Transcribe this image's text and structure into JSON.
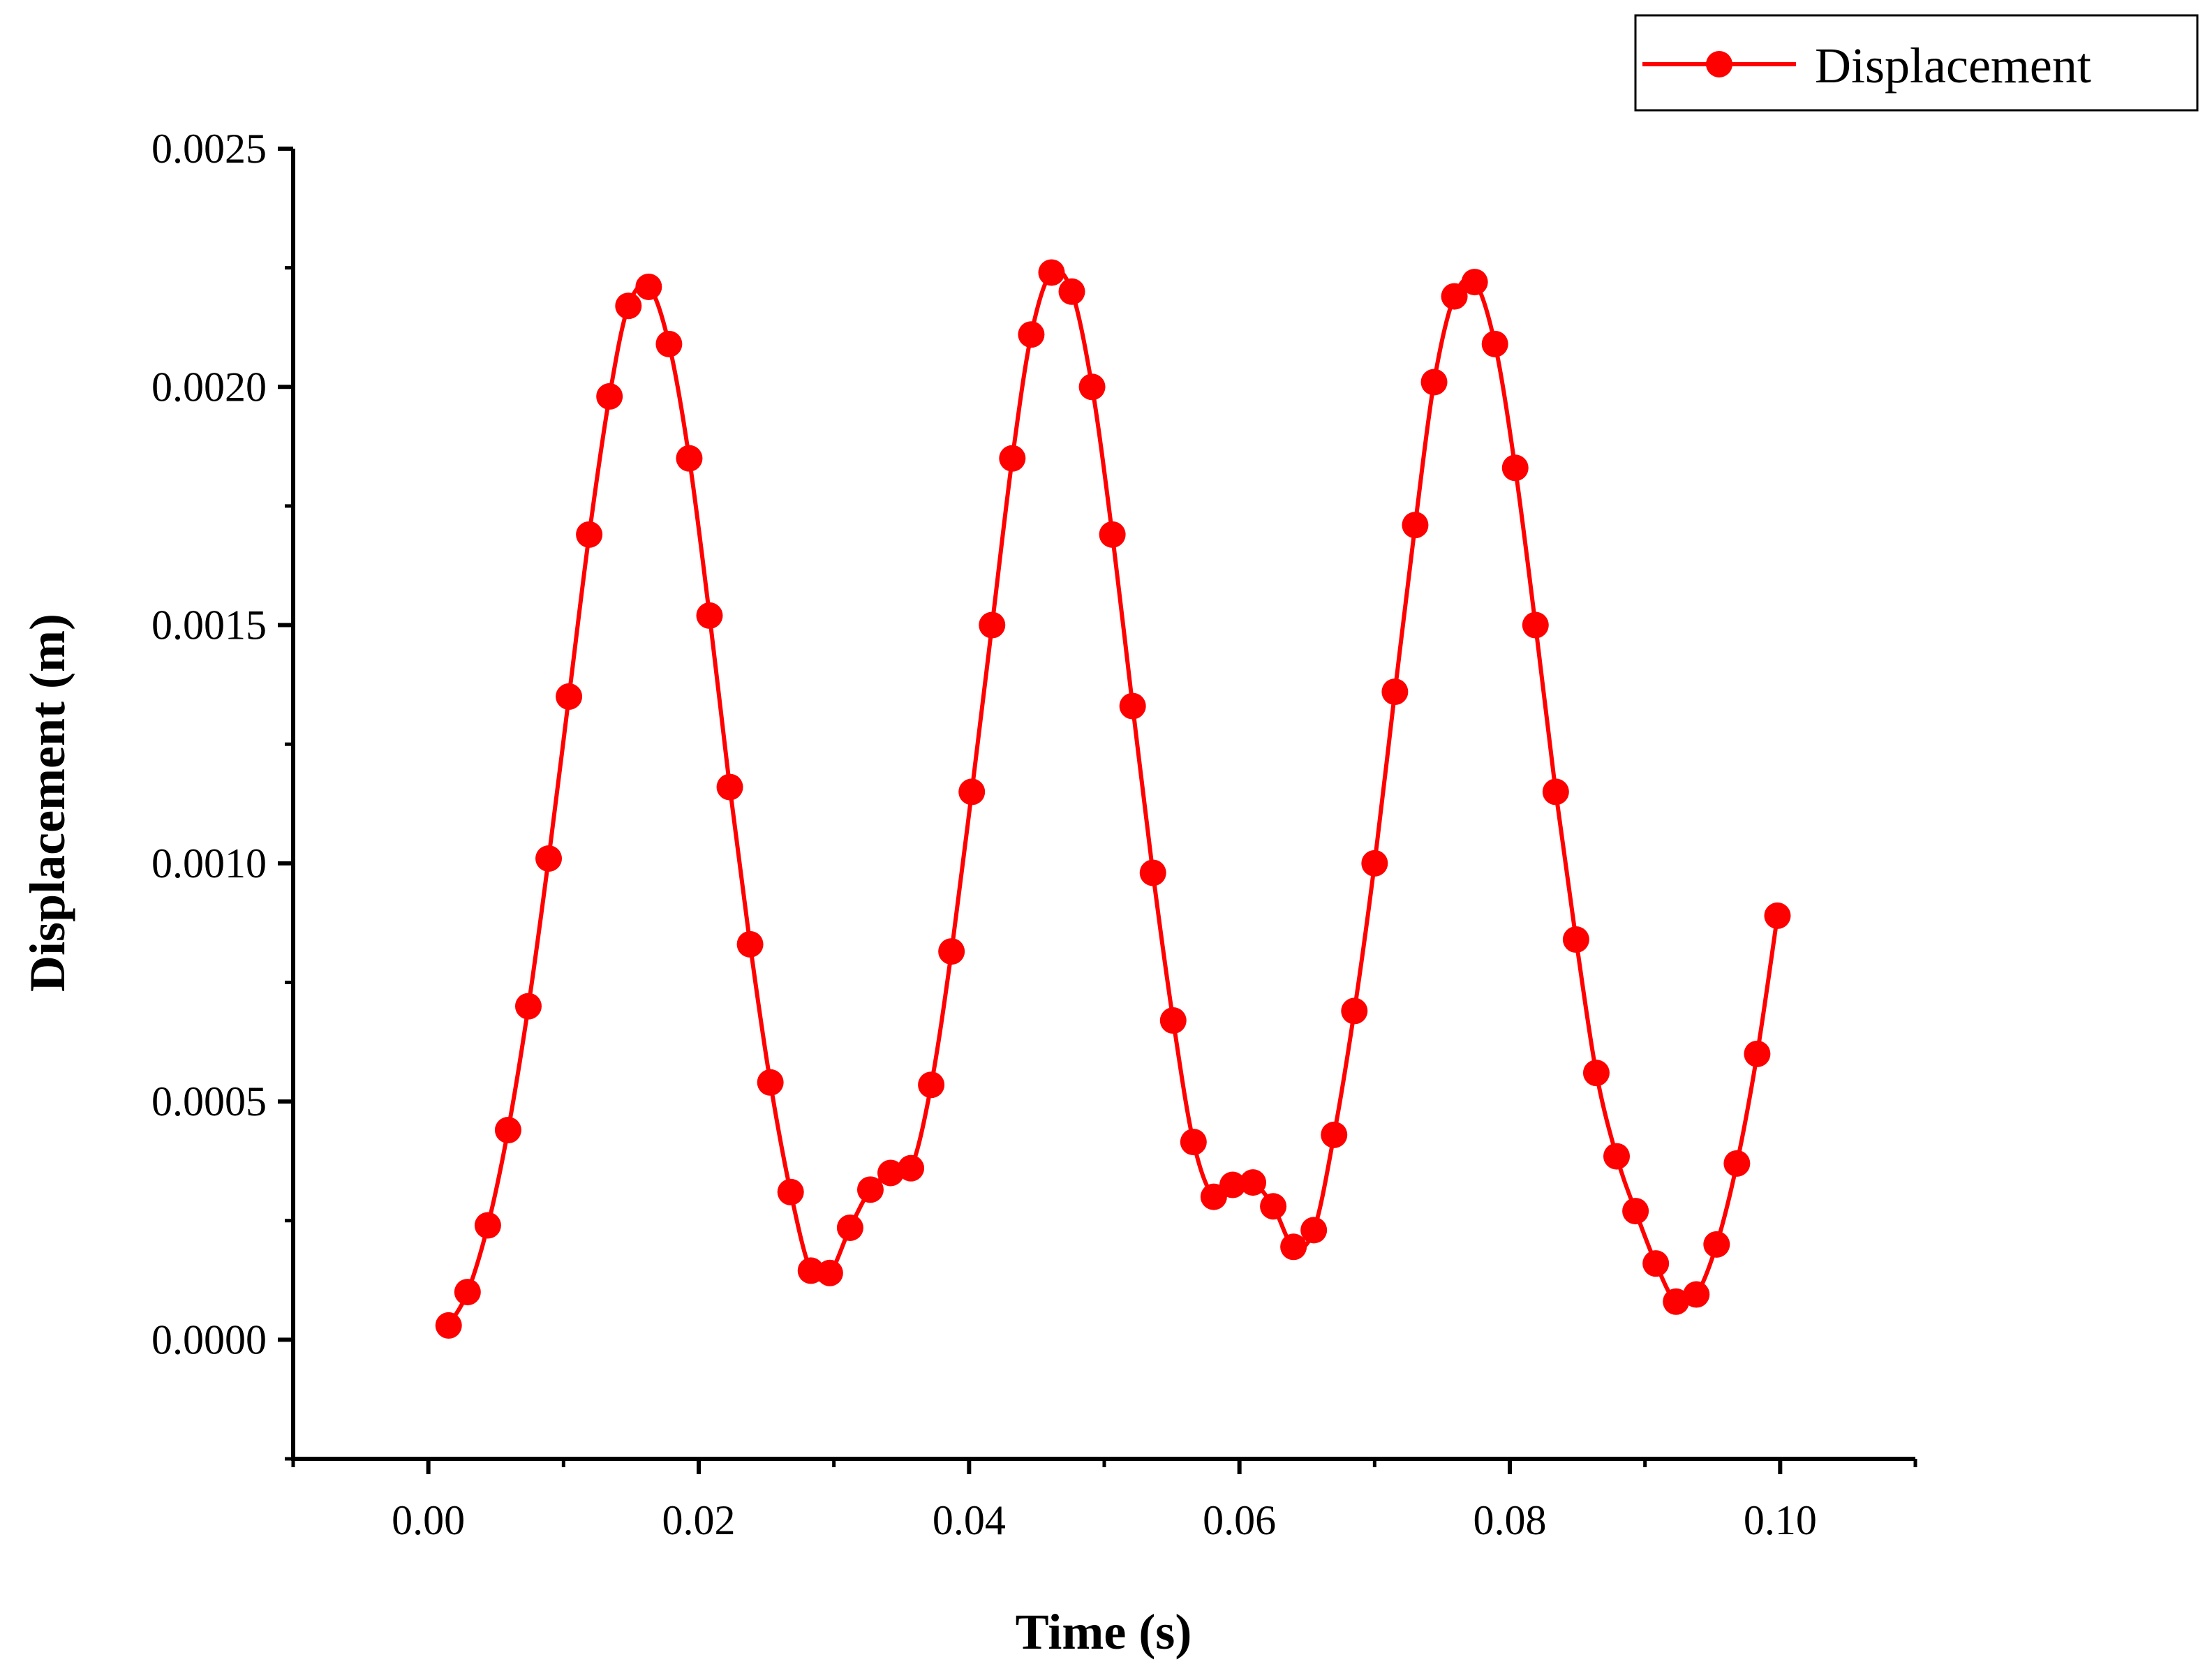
{
  "chart_data": {
    "type": "line",
    "title": "",
    "xlabel": "Time (s)",
    "ylabel": "Displacement (m)",
    "xlim": [
      -0.01,
      0.11
    ],
    "ylim": [
      -0.00025,
      0.0025
    ],
    "x_ticks": [
      "0.00",
      "0.02",
      "0.04",
      "0.06",
      "0.08",
      "0.10"
    ],
    "y_ticks": [
      "0.0000",
      "0.0005",
      "0.0010",
      "0.0015",
      "0.0020",
      "0.0025"
    ],
    "grid": false,
    "legend_position": "top-right",
    "series": [
      {
        "name": "Displacement",
        "color": "#ff0000",
        "x": [
          0.0015,
          0.0029,
          0.0044,
          0.0059,
          0.0074,
          0.0089,
          0.0104,
          0.0119,
          0.0134,
          0.0148,
          0.0163,
          0.0178,
          0.0193,
          0.0208,
          0.0223,
          0.0238,
          0.0253,
          0.0268,
          0.0283,
          0.0297,
          0.0312,
          0.0327,
          0.0342,
          0.0357,
          0.0372,
          0.0387,
          0.0402,
          0.0417,
          0.0432,
          0.0446,
          0.0461,
          0.0476,
          0.0491,
          0.0506,
          0.0521,
          0.0536,
          0.0551,
          0.0566,
          0.0581,
          0.0595,
          0.061,
          0.0625,
          0.064,
          0.0655,
          0.067,
          0.0685,
          0.07,
          0.0715,
          0.073,
          0.0744,
          0.0759,
          0.0774,
          0.0789,
          0.0804,
          0.0819,
          0.0834,
          0.0849,
          0.0864,
          0.0879,
          0.0893,
          0.0908,
          0.0923,
          0.0938,
          0.0953,
          0.0968,
          0.0983,
          0.0998
        ],
        "y": [
          3e-05,
          0.0001,
          0.00024,
          0.00044,
          0.0007,
          0.00101,
          0.00135,
          0.00169,
          0.00198,
          0.00217,
          0.00221,
          0.00209,
          0.00185,
          0.00152,
          0.00116,
          0.00083,
          0.00054,
          0.00031,
          0.000145,
          0.00014,
          0.000235,
          0.000315,
          0.00035,
          0.00036,
          0.000535,
          0.000815,
          0.00115,
          0.0015,
          0.00185,
          0.00211,
          0.00224,
          0.0022,
          0.002,
          0.00169,
          0.00133,
          0.00098,
          0.00067,
          0.000415,
          0.0003,
          0.000325,
          0.00033,
          0.00028,
          0.000195,
          0.00023,
          0.00043,
          0.00069,
          0.001,
          0.00136,
          0.00171,
          0.00201,
          0.00219,
          0.00222,
          0.00209,
          0.00183,
          0.0015,
          0.00115,
          0.00084,
          0.00056,
          0.000385,
          0.00027,
          0.00016,
          8e-05,
          9.5e-05,
          0.0002,
          0.00037,
          0.0006,
          0.00089
        ]
      }
    ]
  }
}
